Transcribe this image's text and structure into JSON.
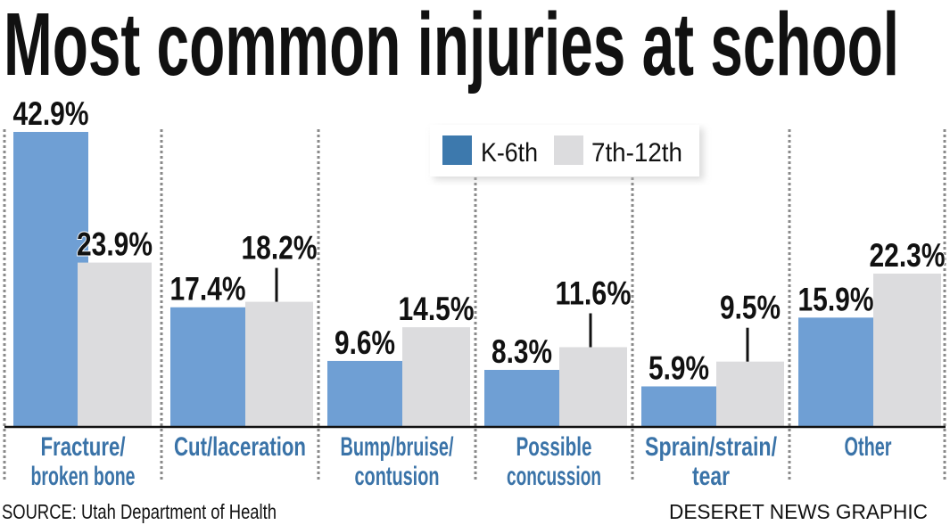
{
  "chart_data": {
    "type": "bar",
    "title": "Most common injuries at school",
    "categories": [
      [
        "Fracture/",
        "broken bone"
      ],
      [
        "Cut/laceration"
      ],
      [
        "Bump/bruise/",
        "contusion"
      ],
      [
        "Possible",
        "concussion"
      ],
      [
        "Sprain/strain/",
        "tear"
      ],
      [
        "Other"
      ]
    ],
    "series": [
      {
        "name": "K-6th",
        "color": "#6f9fd4",
        "values": [
          42.9,
          17.4,
          9.6,
          8.3,
          5.9,
          15.9
        ],
        "labels": [
          "42.9%",
          "17.4%",
          "9.6%",
          "8.3%",
          "5.9%",
          "15.9%"
        ]
      },
      {
        "name": "7th-12th",
        "color": "#dcdcde",
        "values": [
          23.9,
          18.2,
          14.5,
          11.6,
          9.5,
          22.3
        ],
        "labels": [
          "23.9%",
          "18.2%",
          "14.5%",
          "11.6%",
          "9.5%",
          "22.3%"
        ]
      }
    ],
    "legend": {
      "placement": "top-center",
      "swatch_colors": [
        "#3d79ad",
        "#dcdcde"
      ]
    },
    "ylim": [
      0,
      43
    ],
    "grid": false,
    "category_label_color": "#3a73a8",
    "source": "SOURCE: Utah Department of Health",
    "credit": "DESERET NEWS GRAPHIC"
  }
}
